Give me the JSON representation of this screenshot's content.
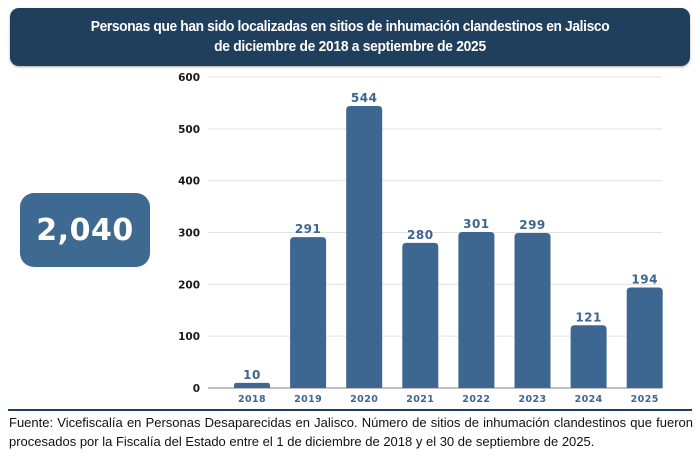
{
  "header": {
    "title_line1": "Personas que han sido localizadas en sitios de inhumación clandestinos en Jalisco",
    "title_line2": "de diciembre de 2018 a septiembre de 2025"
  },
  "total_badge": "2,040",
  "footer": {
    "source_text": "Fuente: Vicefiscalía en Personas Desaparecidas en Jalisco. Número de sitios de inhumación clandestinos que fueron procesados por la Fiscalía del Estado entre el 1 de diciembre de 2018 y el 30 de septiembre de 2025."
  },
  "colors": {
    "header_bg": "#1f3f5c",
    "bar": "#3d6690",
    "badge_bg": "#3e6a91",
    "value_label": "#3d6690",
    "year_label": "#3d6690"
  },
  "chart_data": {
    "type": "bar",
    "title": "Personas que han sido localizadas en sitios de inhumación clandestinos en Jalisco de diciembre de 2018 a septiembre de 2025",
    "categories": [
      "2018",
      "2019",
      "2020",
      "2021",
      "2022",
      "2023",
      "2024",
      "2025"
    ],
    "values": [
      10,
      291,
      544,
      280,
      301,
      299,
      121,
      194
    ],
    "data_labels": [
      "10",
      "291",
      "544",
      "280",
      "301",
      "299",
      "121",
      "194"
    ],
    "xlabel": "",
    "ylabel": "",
    "ylim": [
      0,
      600
    ],
    "yticks": [
      0,
      100,
      200,
      300,
      400,
      500,
      600
    ],
    "grid": true,
    "legend": "none",
    "total": 2040
  }
}
